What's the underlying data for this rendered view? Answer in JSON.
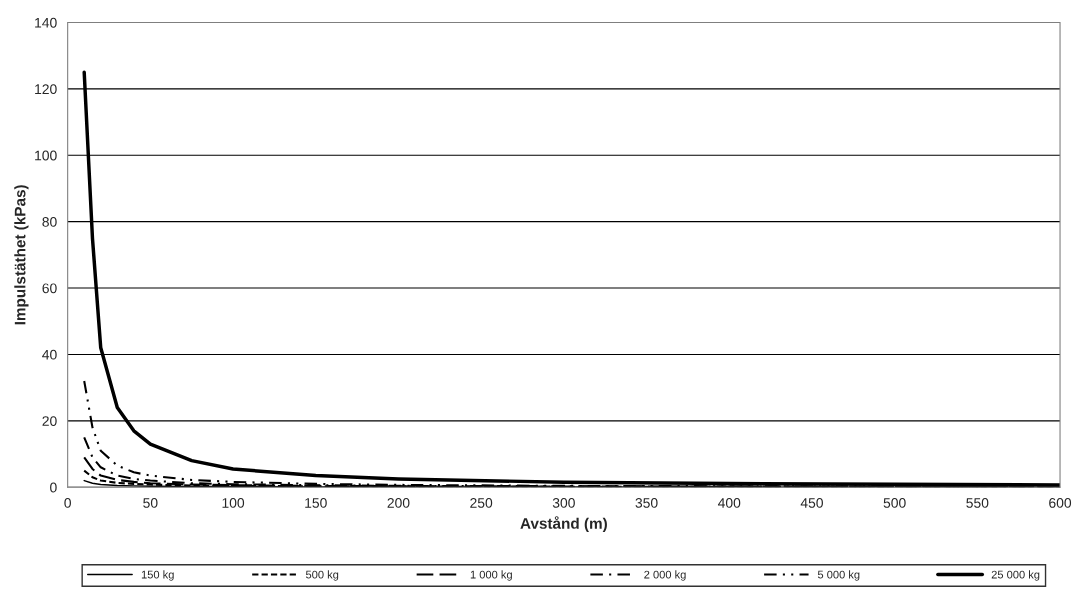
{
  "chart_data": {
    "type": "line",
    "xlabel": "Avstånd (m)",
    "ylabel": "Impulstäthet (kPas)",
    "x": [
      10,
      15,
      20,
      30,
      40,
      50,
      75,
      100,
      150,
      200,
      300,
      400,
      500,
      600
    ],
    "xlim": [
      0,
      600
    ],
    "xticks": [
      0,
      50,
      100,
      150,
      200,
      250,
      300,
      350,
      400,
      450,
      500,
      550,
      600
    ],
    "ylim": [
      0,
      140
    ],
    "yticks": [
      0,
      20,
      40,
      60,
      80,
      100,
      120,
      140
    ],
    "grid": "y",
    "legend": "bottom",
    "marker": "none",
    "series": [
      {
        "name": "150 kg",
        "color": "#000000",
        "line_style": "solid",
        "values": [
          2,
          1.2,
          0.8,
          0.5,
          0.4,
          0.3,
          0.2,
          0.2,
          0.1,
          0.1,
          0.1,
          0,
          0,
          0
        ]
      },
      {
        "name": "500 kg",
        "color": "#000000",
        "line_style": "dashed",
        "values": [
          5,
          3,
          2,
          1.3,
          1,
          0.8,
          0.5,
          0.4,
          0.3,
          0.2,
          0.1,
          0.1,
          0.1,
          0.1
        ]
      },
      {
        "name": "1 000 kg",
        "color": "#000000",
        "line_style": "longdash",
        "values": [
          9,
          5.5,
          3.5,
          2.2,
          1.6,
          1.2,
          0.8,
          0.6,
          0.4,
          0.3,
          0.2,
          0.2,
          0.1,
          0.1
        ]
      },
      {
        "name": "2 000 kg",
        "color": "#000000",
        "line_style": "dashdot",
        "values": [
          15,
          9,
          6,
          3.5,
          2.5,
          2,
          1.2,
          0.9,
          0.6,
          0.4,
          0.3,
          0.2,
          0.2,
          0.1
        ]
      },
      {
        "name": "5 000 kg",
        "color": "#000000",
        "line_style": "dashdotdot",
        "values": [
          32,
          18,
          11,
          6.5,
          4.5,
          3.5,
          2.2,
          1.6,
          1,
          0.7,
          0.4,
          0.3,
          0.3,
          0.2
        ]
      },
      {
        "name": "25 000 kg",
        "color": "#000000",
        "line_style": "solid",
        "values": [
          125,
          75,
          42,
          24,
          17,
          13,
          8,
          5.5,
          3.5,
          2.5,
          1.5,
          1.1,
          0.9,
          0.7
        ]
      }
    ]
  }
}
